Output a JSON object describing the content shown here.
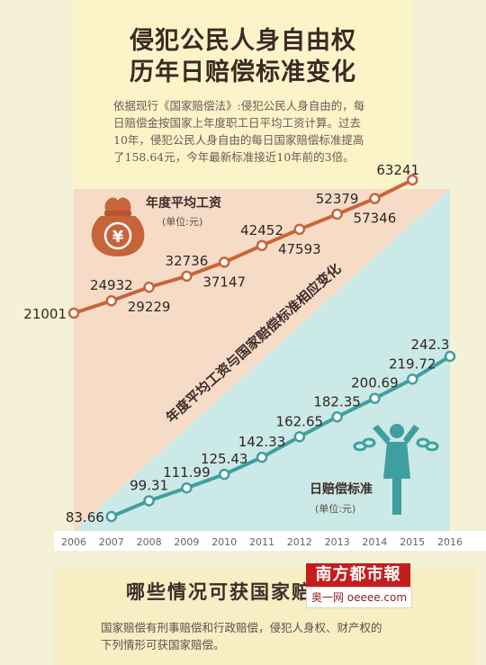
{
  "title": {
    "line1": "侵犯公民人身自由权",
    "line2": "历年日赔偿标准变化"
  },
  "intro": {
    "line1": "依据现行《国家赔偿法》:侵犯公民人身自由的，每",
    "line2": "日赔偿金按国家上年度职工日平均工资计算。过去",
    "line3": "10年，侵犯公民人身自由的每日国家赔偿标准提高",
    "line4": "了158.64元，今年最新标准接近10年前的3倍。"
  },
  "chart_data": {
    "type": "line",
    "x": [
      2006,
      2007,
      2008,
      2009,
      2010,
      2011,
      2012,
      2013,
      2014,
      2015,
      2016
    ],
    "diagonal_label": "年度平均工资与国家赔偿标准相应变化",
    "series": [
      {
        "name": "年度平均工资",
        "unit": "(单位:元)",
        "x": [
          2006,
          2007,
          2008,
          2009,
          2010,
          2011,
          2012,
          2013,
          2014,
          2015
        ],
        "values": [
          21001,
          24932,
          29229,
          32736,
          37147,
          42452,
          47593,
          52379,
          57346,
          63241
        ],
        "color": "#c8643a"
      },
      {
        "name": "日赔偿标准",
        "unit": "(单位:元)",
        "x": [
          2007,
          2008,
          2009,
          2010,
          2011,
          2012,
          2013,
          2014,
          2015,
          2016
        ],
        "values": [
          83.66,
          99.31,
          111.99,
          125.43,
          142.33,
          162.65,
          182.35,
          200.69,
          219.72,
          242.3
        ],
        "color": "#3f9fa0"
      }
    ]
  },
  "icons": {
    "money_bag": "money-bag-icon",
    "figure": "person-breaking-chains-icon",
    "currency_symbol": "¥"
  },
  "footer": {
    "title": "哪些情况可获国家赔偿",
    "text_line1": "国家赔偿有刑事赔偿和行政赔偿，侵犯人身权、财产权的",
    "text_line2": "下列情形可获国家赔偿。"
  },
  "logo": {
    "top": "南方都市報",
    "bottom": "奥一网 oeeee.com"
  },
  "colors": {
    "salary_line": "#c8643a",
    "compensation_line": "#3f9fa0",
    "salary_area": "#f6dcc7",
    "compensation_area": "#cbe9e6",
    "text_dark": "#3b2a24"
  }
}
